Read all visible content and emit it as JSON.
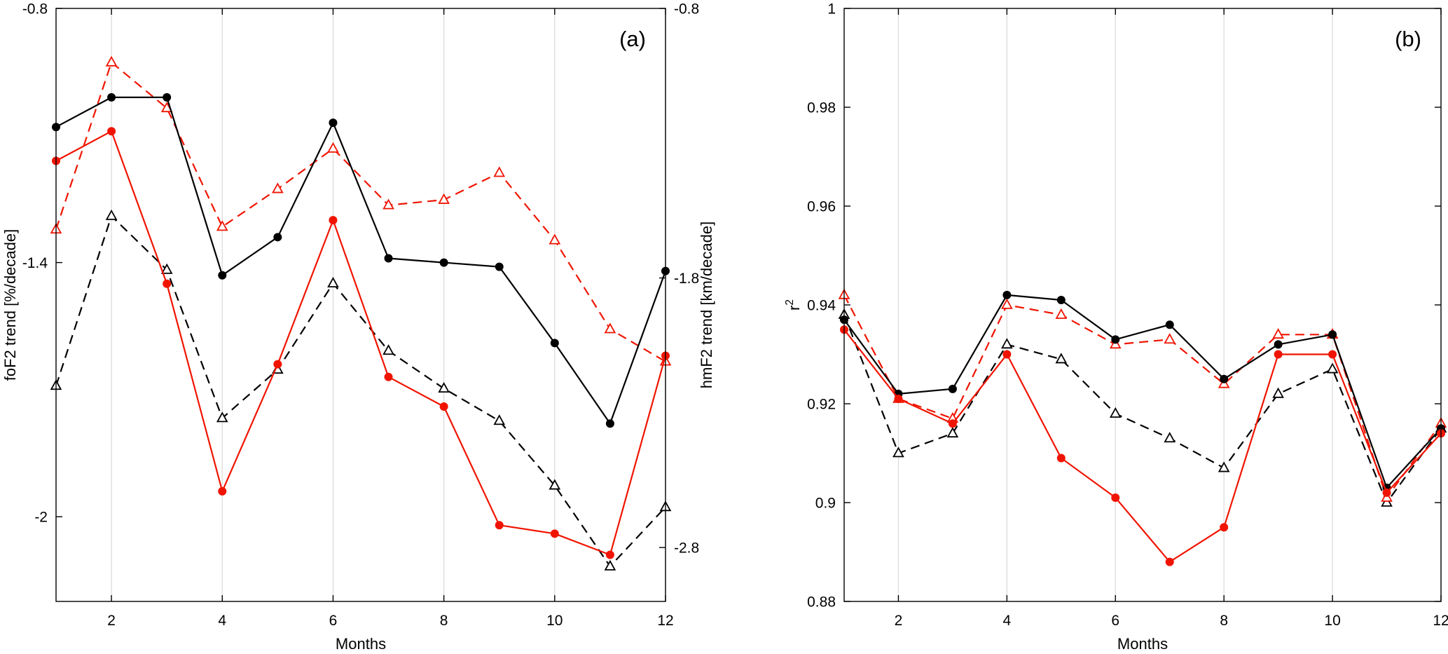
{
  "figure": {
    "background": "#ffffff"
  },
  "colors": {
    "black": "#000000",
    "red": "#f01400",
    "grid": "#d9d9d9",
    "axis": "#000000",
    "open_marker_fill": "#ffffff"
  },
  "chart_data": [
    {
      "id": "a",
      "type": "line",
      "panel_label": "(a)",
      "xlabel": "Months",
      "xlim": [
        1,
        12
      ],
      "grid": "vertical-only",
      "x": [
        1,
        2,
        3,
        4,
        5,
        6,
        7,
        8,
        9,
        10,
        11,
        12
      ],
      "x_ticks": [
        {
          "v": 2,
          "t": "2"
        },
        {
          "v": 4,
          "t": "4"
        },
        {
          "v": 6,
          "t": "6"
        },
        {
          "v": 8,
          "t": "8"
        },
        {
          "v": 10,
          "t": "10"
        },
        {
          "v": 12,
          "t": "12"
        }
      ],
      "left_axis": {
        "label": "foF2 trend [%/decade]",
        "lim": [
          -2.2,
          -0.8
        ],
        "ticks": [
          {
            "v": -0.8,
            "t": "-0.8"
          },
          {
            "v": -1.4,
            "t": "-1.4"
          },
          {
            "v": -2.0,
            "t": "-2"
          }
        ]
      },
      "right_axis": {
        "label": "hmF2 trend [km/decade]",
        "lim": [
          -3.0,
          -0.8
        ],
        "ticks": [
          {
            "v": -0.8,
            "t": "-0.8"
          },
          {
            "v": -1.8,
            "t": "-1.8"
          },
          {
            "v": -2.8,
            "t": "-2.8"
          }
        ]
      },
      "series": [
        {
          "name": "hmF2-black-dashed",
          "axis": "right",
          "color": "black",
          "line": "dashed",
          "marker": "triangle-open",
          "values": [
            -2.2,
            -1.57,
            -1.77,
            -2.32,
            -2.14,
            -1.82,
            -2.07,
            -2.21,
            -2.33,
            -2.57,
            -2.87,
            -2.65
          ]
        },
        {
          "name": "hmF2-red-dashed",
          "axis": "right",
          "color": "red",
          "line": "dashed",
          "marker": "triangle-open",
          "values": [
            -1.62,
            -1.0,
            -1.17,
            -1.61,
            -1.47,
            -1.32,
            -1.53,
            -1.51,
            -1.41,
            -1.66,
            -1.99,
            -2.11
          ]
        },
        {
          "name": "foF2-black-solid",
          "axis": "left",
          "color": "black",
          "line": "solid",
          "marker": "circle-filled",
          "values": [
            -1.08,
            -1.01,
            -1.01,
            -1.43,
            -1.34,
            -1.07,
            -1.39,
            -1.4,
            -1.41,
            -1.59,
            -1.78,
            -1.42
          ]
        },
        {
          "name": "foF2-red-solid",
          "axis": "left",
          "color": "red",
          "line": "solid",
          "marker": "circle-filled",
          "values": [
            -1.16,
            -1.09,
            -1.45,
            -1.94,
            -1.64,
            -1.3,
            -1.67,
            -1.74,
            -2.02,
            -2.04,
            -2.09,
            -1.62
          ]
        }
      ]
    },
    {
      "id": "b",
      "type": "line",
      "panel_label": "(b)",
      "xlabel": "Months",
      "xlim": [
        1,
        12
      ],
      "grid": "vertical-only",
      "x": [
        1,
        2,
        3,
        4,
        5,
        6,
        7,
        8,
        9,
        10,
        11,
        12
      ],
      "x_ticks": [
        {
          "v": 2,
          "t": "2"
        },
        {
          "v": 4,
          "t": "4"
        },
        {
          "v": 6,
          "t": "6"
        },
        {
          "v": 8,
          "t": "8"
        },
        {
          "v": 10,
          "t": "10"
        },
        {
          "v": 12,
          "t": "12"
        }
      ],
      "left_axis": {
        "label": "r^2",
        "lim": [
          0.88,
          1.0
        ],
        "ticks": [
          {
            "v": 0.88,
            "t": "0.88"
          },
          {
            "v": 0.9,
            "t": "0.9"
          },
          {
            "v": 0.92,
            "t": "0.92"
          },
          {
            "v": 0.94,
            "t": "0.94"
          },
          {
            "v": 0.96,
            "t": "0.96"
          },
          {
            "v": 0.98,
            "t": "0.98"
          },
          {
            "v": 1.0,
            "t": "1"
          }
        ]
      },
      "right_axis": null,
      "series": [
        {
          "name": "r2-black-dashed",
          "axis": "left",
          "color": "black",
          "line": "dashed",
          "marker": "triangle-open",
          "values": [
            0.938,
            0.91,
            0.914,
            0.932,
            0.929,
            0.918,
            0.913,
            0.907,
            0.922,
            0.927,
            0.9,
            0.915
          ]
        },
        {
          "name": "r2-red-dashed",
          "axis": "left",
          "color": "red",
          "line": "dashed",
          "marker": "triangle-open",
          "values": [
            0.942,
            0.921,
            0.917,
            0.94,
            0.938,
            0.932,
            0.933,
            0.924,
            0.934,
            0.934,
            0.901,
            0.916
          ]
        },
        {
          "name": "r2-black-solid",
          "axis": "left",
          "color": "black",
          "line": "solid",
          "marker": "circle-filled",
          "values": [
            0.937,
            0.922,
            0.923,
            0.942,
            0.941,
            0.933,
            0.936,
            0.925,
            0.932,
            0.934,
            0.903,
            0.915
          ]
        },
        {
          "name": "r2-red-solid",
          "axis": "left",
          "color": "red",
          "line": "solid",
          "marker": "circle-filled",
          "values": [
            0.935,
            0.921,
            0.916,
            0.93,
            0.909,
            0.901,
            0.888,
            0.895,
            0.93,
            0.93,
            0.902,
            0.914
          ]
        }
      ]
    }
  ]
}
